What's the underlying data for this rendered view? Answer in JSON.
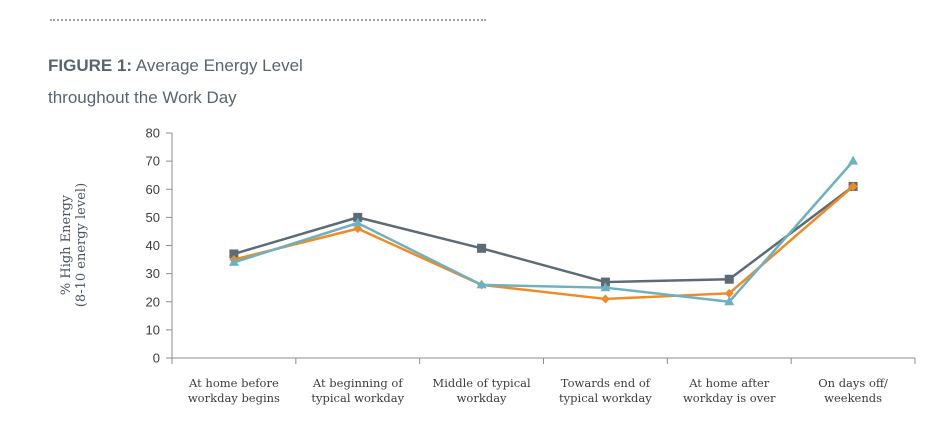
{
  "figure": {
    "label": "FIGURE 1:",
    "title_line1": "Average Energy Level",
    "title_line2": "throughout the Work Day"
  },
  "chart_data": {
    "type": "line",
    "title": "FIGURE 1: Average Energy Level throughout the Work Day",
    "ylabel_line1": "% High Energy",
    "ylabel_line2": "(8-10 energy level)",
    "ylim": [
      0,
      80
    ],
    "yticks": [
      0,
      10,
      20,
      30,
      40,
      50,
      60,
      70,
      80
    ],
    "grid": false,
    "categories": [
      [
        "At home before",
        "workday begins"
      ],
      [
        "At beginning of",
        "typical workday"
      ],
      [
        "Middle of typical",
        "workday"
      ],
      [
        "Towards end of",
        "typical workday"
      ],
      [
        "At home after",
        "workday is over"
      ],
      [
        "On days off/",
        "weekends"
      ]
    ],
    "series": [
      {
        "color": "#5d6b77",
        "marker": "square",
        "values": [
          37,
          50,
          39,
          27,
          28,
          61
        ]
      },
      {
        "color": "#f08a24",
        "marker": "diamond",
        "values": [
          35,
          46,
          26,
          21,
          23,
          61
        ]
      },
      {
        "color": "#6fb0c0",
        "marker": "triangle",
        "values": [
          34,
          48,
          26,
          25,
          20,
          70
        ]
      }
    ]
  }
}
